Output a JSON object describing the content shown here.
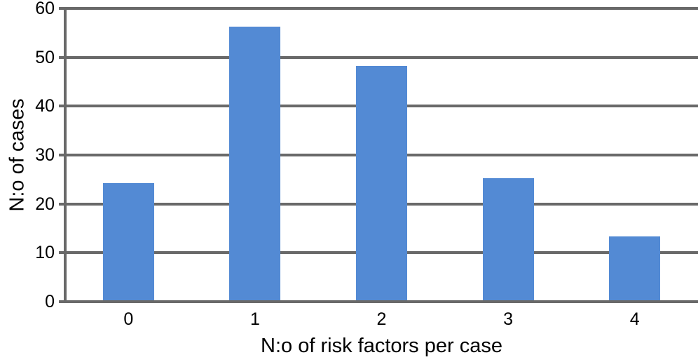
{
  "chart_data": {
    "type": "bar",
    "title": "",
    "categories": [
      "0",
      "1",
      "2",
      "3",
      "4"
    ],
    "values": [
      24,
      56,
      48,
      25,
      13
    ],
    "xlabel": "N:o of risk factors per case",
    "ylabel": "N:o of cases",
    "ylim": [
      0,
      60
    ],
    "ytick_step": 10,
    "ytick_labels": [
      "0",
      "10",
      "20",
      "30",
      "40",
      "50",
      "60"
    ],
    "grid": true,
    "legend": false,
    "bar_color": "#538AD4",
    "gridline_color": "#696969",
    "axis_color": "#696969",
    "text_color": "#000000"
  }
}
